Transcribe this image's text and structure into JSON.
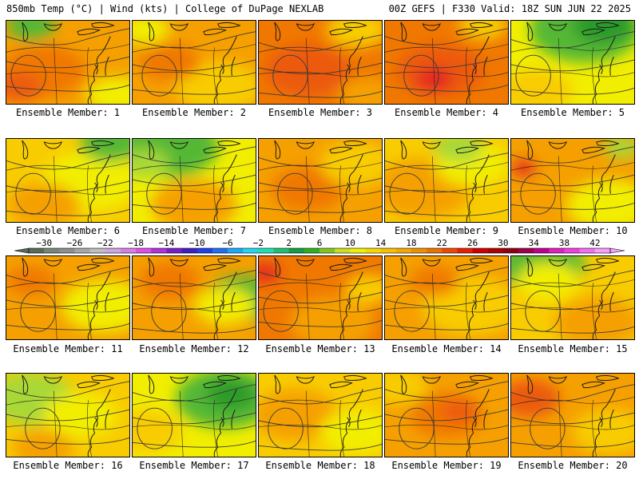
{
  "header": {
    "left": "850mb Temp (°C) | Wind (kts) | College of DuPage NEXLAB",
    "right": "00Z GEFS | F330 Valid: 18Z SUN JUN 22 2025"
  },
  "label_prefix": "Ensemble Member: ",
  "colorbar": {
    "labels": [
      "−30",
      "−26",
      "−22",
      "−18",
      "−14",
      "−10",
      "−6",
      "−2",
      "2",
      "6",
      "10",
      "14",
      "18",
      "22",
      "26",
      "30",
      "34",
      "38",
      "42"
    ],
    "colors": [
      "#5a6b5a",
      "#788878",
      "#8f8f8f",
      "#a8a8a8",
      "#bfbfbf",
      "#cfa6e0",
      "#d97ee8",
      "#e04ee8",
      "#b032d8",
      "#7a1ec8",
      "#4020c0",
      "#2040e8",
      "#2070f0",
      "#20a8f8",
      "#20d8f0",
      "#20e0b0",
      "#20c070",
      "#10a040",
      "#30b020",
      "#80c820",
      "#c8e020",
      "#f0f000",
      "#f8d800",
      "#f8c000",
      "#f8a800",
      "#f09000",
      "#f07000",
      "#f04800",
      "#e82000",
      "#d00000",
      "#b00000",
      "#900010",
      "#a00050",
      "#c00090",
      "#e020c0",
      "#f040e0",
      "#f070f0",
      "#f8a0f8"
    ]
  },
  "palette": {
    "green_dark": "#2a9a2a",
    "green": "#55b836",
    "yellow_green": "#a8d838",
    "yellow": "#f2ee00",
    "gold": "#f8cc00",
    "orange": "#f5a000",
    "dark_orange": "#f07800",
    "red_orange": "#ec5a10",
    "red": "#e42020",
    "contour": "#3a3a3a",
    "coast": "#1a1a1a"
  },
  "members": [
    {
      "number": "1",
      "base": "orange",
      "blobs": [
        [
          "dark_orange",
          0.3,
          0.6,
          0.35
        ],
        [
          "red_orange",
          0.1,
          0.8,
          0.2
        ],
        [
          "yellow",
          0.9,
          0.9,
          0.25
        ],
        [
          "green",
          0.2,
          0.05,
          0.2
        ]
      ]
    },
    {
      "number": "2",
      "base": "orange",
      "blobs": [
        [
          "gold",
          0.7,
          0.8,
          0.35
        ],
        [
          "dark_orange",
          0.3,
          0.5,
          0.25
        ],
        [
          "yellow",
          0.1,
          0.1,
          0.2
        ]
      ]
    },
    {
      "number": "3",
      "base": "dark_orange",
      "blobs": [
        [
          "red_orange",
          0.4,
          0.6,
          0.35
        ],
        [
          "gold",
          0.8,
          0.1,
          0.25
        ],
        [
          "orange",
          0.9,
          0.9,
          0.25
        ]
      ]
    },
    {
      "number": "4",
      "base": "dark_orange",
      "blobs": [
        [
          "red_orange",
          0.45,
          0.6,
          0.35
        ],
        [
          "red",
          0.4,
          0.7,
          0.15
        ],
        [
          "gold",
          0.8,
          0.05,
          0.2
        ]
      ]
    },
    {
      "number": "5",
      "base": "yellow",
      "blobs": [
        [
          "green",
          0.6,
          0.1,
          0.45
        ],
        [
          "green_dark",
          0.75,
          0.05,
          0.25
        ],
        [
          "gold",
          0.2,
          0.85,
          0.3
        ]
      ]
    },
    {
      "number": "6",
      "base": "gold",
      "blobs": [
        [
          "yellow",
          0.7,
          0.5,
          0.4
        ],
        [
          "green",
          0.85,
          0.05,
          0.25
        ],
        [
          "orange",
          0.3,
          0.8,
          0.3
        ]
      ]
    },
    {
      "number": "7",
      "base": "yellow",
      "blobs": [
        [
          "green",
          0.3,
          0.1,
          0.4
        ],
        [
          "orange",
          0.5,
          0.8,
          0.35
        ],
        [
          "yellow_green",
          0.1,
          0.3,
          0.2
        ]
      ]
    },
    {
      "number": "8",
      "base": "orange",
      "blobs": [
        [
          "dark_orange",
          0.4,
          0.6,
          0.3
        ],
        [
          "gold",
          0.8,
          0.3,
          0.3
        ]
      ]
    },
    {
      "number": "9",
      "base": "gold",
      "blobs": [
        [
          "orange",
          0.3,
          0.6,
          0.4
        ],
        [
          "yellow",
          0.7,
          0.3,
          0.3
        ],
        [
          "yellow_green",
          0.6,
          0.1,
          0.2
        ]
      ]
    },
    {
      "number": "10",
      "base": "orange",
      "blobs": [
        [
          "yellow",
          0.8,
          0.8,
          0.35
        ],
        [
          "red",
          0.1,
          0.35,
          0.1
        ],
        [
          "yellow_green",
          0.9,
          0.1,
          0.15
        ]
      ]
    },
    {
      "number": "11",
      "base": "orange",
      "blobs": [
        [
          "yellow",
          0.8,
          0.6,
          0.35
        ],
        [
          "dark_orange",
          0.2,
          0.3,
          0.2
        ]
      ]
    },
    {
      "number": "12",
      "base": "orange",
      "blobs": [
        [
          "green",
          0.9,
          0.5,
          0.3
        ],
        [
          "yellow",
          0.75,
          0.6,
          0.25
        ],
        [
          "dark_orange",
          0.3,
          0.3,
          0.25
        ]
      ]
    },
    {
      "number": "13",
      "base": "dark_orange",
      "blobs": [
        [
          "red",
          0.05,
          0.2,
          0.12
        ],
        [
          "orange",
          0.6,
          0.8,
          0.35
        ],
        [
          "gold",
          0.9,
          0.4,
          0.2
        ]
      ]
    },
    {
      "number": "14",
      "base": "orange",
      "blobs": [
        [
          "gold",
          0.7,
          0.6,
          0.4
        ],
        [
          "dark_orange",
          0.4,
          0.3,
          0.2
        ]
      ]
    },
    {
      "number": "15",
      "base": "gold",
      "blobs": [
        [
          "green",
          0.25,
          0.1,
          0.35
        ],
        [
          "yellow",
          0.3,
          0.3,
          0.25
        ],
        [
          "orange",
          0.7,
          0.8,
          0.35
        ]
      ]
    },
    {
      "number": "16",
      "base": "gold",
      "blobs": [
        [
          "yellow_green",
          0.2,
          0.3,
          0.35
        ],
        [
          "yellow",
          0.6,
          0.5,
          0.3
        ],
        [
          "orange",
          0.3,
          0.9,
          0.25
        ]
      ]
    },
    {
      "number": "17",
      "base": "yellow",
      "blobs": [
        [
          "green",
          0.75,
          0.3,
          0.4
        ],
        [
          "green_dark",
          0.8,
          0.25,
          0.2
        ],
        [
          "gold",
          0.1,
          0.7,
          0.3
        ]
      ]
    },
    {
      "number": "18",
      "base": "gold",
      "blobs": [
        [
          "orange",
          0.3,
          0.5,
          0.35
        ],
        [
          "yellow",
          0.8,
          0.7,
          0.3
        ]
      ]
    },
    {
      "number": "19",
      "base": "orange",
      "blobs": [
        [
          "dark_orange",
          0.5,
          0.5,
          0.3
        ],
        [
          "red_orange",
          0.6,
          0.45,
          0.15
        ],
        [
          "gold",
          0.1,
          0.15,
          0.25
        ]
      ]
    },
    {
      "number": "20",
      "base": "orange",
      "blobs": [
        [
          "red",
          0.05,
          0.3,
          0.15
        ],
        [
          "red_orange",
          0.15,
          0.3,
          0.25
        ],
        [
          "gold",
          0.8,
          0.7,
          0.3
        ]
      ]
    }
  ]
}
